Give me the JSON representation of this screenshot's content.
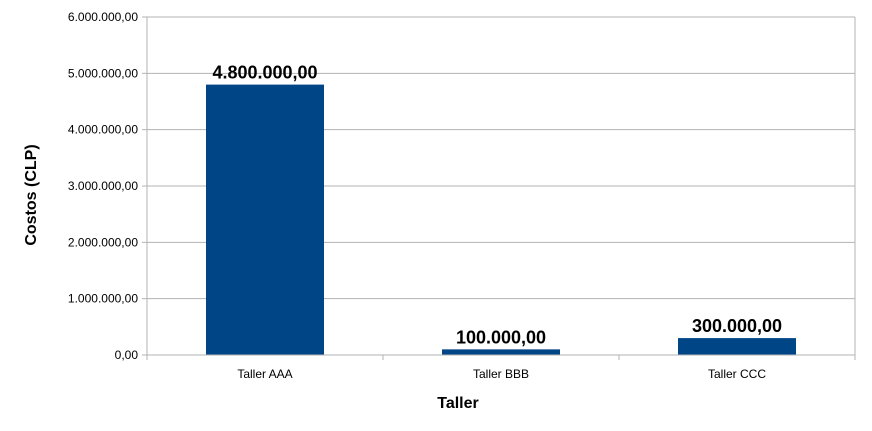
{
  "chart_data": {
    "type": "bar",
    "title": "",
    "xlabel": "Taller",
    "ylabel": "Costos (CLP)",
    "categories": [
      "Taller AAA",
      "Taller BBB",
      "Taller CCC"
    ],
    "values": [
      4800000,
      100000,
      300000
    ],
    "data_labels": [
      "4.800.000,00",
      "100.000,00",
      "300.000,00"
    ],
    "ylim": [
      0,
      6000000
    ],
    "y_ticks": [
      0,
      1000000,
      2000000,
      3000000,
      4000000,
      5000000,
      6000000
    ],
    "y_tick_labels": [
      "0,00",
      "1.000.000,00",
      "2.000.000,00",
      "3.000.000,00",
      "4.000.000,00",
      "5.000.000,00",
      "6.000.000,00"
    ],
    "grid": true,
    "legend": "none",
    "colors": {
      "bar": "#004586",
      "grid": "#b3b3b3",
      "axis": "#b3b3b3"
    }
  }
}
